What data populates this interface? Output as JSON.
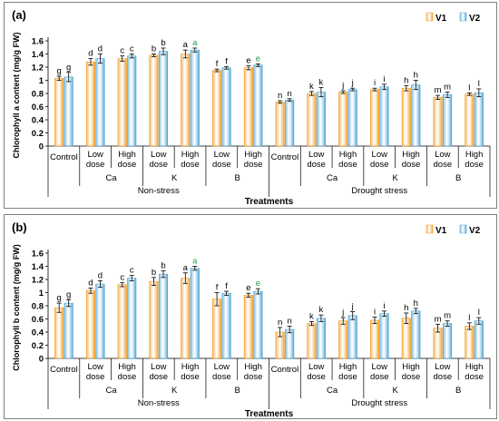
{
  "colors": {
    "V1": "#f39b1f",
    "V2": "#4aa3d6"
  },
  "chart_data": [
    {
      "type": "bar",
      "panel_label": "(a)",
      "ylabel": "Chlorophyll a content (mg/g FW)",
      "xlabel": "Treatments",
      "ylim": [
        0,
        1.6
      ],
      "yticks": [
        "0",
        "0.2",
        "0.4",
        "0.6",
        "0.8",
        "1",
        "1.2",
        "1.4",
        "1.6"
      ],
      "grid": false,
      "legend_position": "top-right",
      "categories": [
        "Control",
        "Low dose",
        "High dose",
        "Low dose",
        "High dose",
        "Low dose",
        "High dose",
        "Control",
        "Low dose",
        "High dose",
        "Low dose",
        "High dose",
        "Low dose",
        "High dose"
      ],
      "element_groups": [
        "Ca",
        "K",
        "B",
        "Ca",
        "K",
        "B"
      ],
      "stress_groups": [
        "Non-stress",
        "Drought stress"
      ],
      "series": [
        {
          "name": "V1",
          "values": [
            1.03,
            1.28,
            1.33,
            1.38,
            1.4,
            1.15,
            1.19,
            0.67,
            0.8,
            0.82,
            0.86,
            0.88,
            0.74,
            0.79
          ],
          "errors": [
            0.03,
            0.05,
            0.04,
            0.02,
            0.06,
            0.02,
            0.03,
            0.02,
            0.03,
            0.02,
            0.02,
            0.04,
            0.03,
            0.02
          ],
          "letters": [
            "g",
            "d",
            "c",
            "b",
            "a",
            "f",
            "e",
            "n",
            "k",
            "j",
            "i",
            "h",
            "m",
            "l"
          ]
        },
        {
          "name": "V2",
          "values": [
            1.05,
            1.33,
            1.37,
            1.44,
            1.46,
            1.19,
            1.23,
            0.7,
            0.82,
            0.86,
            0.9,
            0.93,
            0.78,
            0.81
          ],
          "errors": [
            0.07,
            0.07,
            0.03,
            0.05,
            0.03,
            0.02,
            0.02,
            0.02,
            0.07,
            0.02,
            0.04,
            0.07,
            0.04,
            0.06
          ],
          "letters": [
            "g",
            "d",
            "c",
            "b",
            "a",
            "f",
            "e",
            "n",
            "k",
            "j",
            "i",
            "h",
            "m",
            "l"
          ]
        }
      ]
    },
    {
      "type": "bar",
      "panel_label": "(b)",
      "ylabel": "Chlorophyll b content (mg/g FW)",
      "xlabel": "Treatments",
      "ylim": [
        0,
        1.6
      ],
      "yticks": [
        "0",
        "0.2",
        "0.4",
        "0.6",
        "0.8",
        "1",
        "1.2",
        "1.4",
        "1.6"
      ],
      "grid": false,
      "legend_position": "top-right",
      "categories": [
        "Control",
        "Low dose",
        "High dose",
        "Low dose",
        "High dose",
        "Low dose",
        "High dose",
        "Control",
        "Low dose",
        "High dose",
        "Low dose",
        "High dose",
        "Low dose",
        "High dose"
      ],
      "element_groups": [
        "Ca",
        "K",
        "B",
        "Ca",
        "K",
        "B"
      ],
      "stress_groups": [
        "Non-stress",
        "Drought stress"
      ],
      "series": [
        {
          "name": "V1",
          "values": [
            0.77,
            1.03,
            1.12,
            1.17,
            1.22,
            0.9,
            0.96,
            0.4,
            0.53,
            0.57,
            0.58,
            0.61,
            0.46,
            0.49
          ],
          "errors": [
            0.07,
            0.04,
            0.03,
            0.06,
            0.08,
            0.1,
            0.03,
            0.07,
            0.03,
            0.05,
            0.05,
            0.08,
            0.06,
            0.05
          ],
          "letters": [
            "g",
            "d",
            "c",
            "b",
            "a",
            "f",
            "e",
            "n",
            "k",
            "j",
            "i",
            "h",
            "m",
            "l"
          ]
        },
        {
          "name": "V2",
          "values": [
            0.84,
            1.13,
            1.22,
            1.28,
            1.37,
            0.99,
            1.02,
            0.44,
            0.61,
            0.65,
            0.68,
            0.72,
            0.53,
            0.57
          ],
          "errors": [
            0.05,
            0.05,
            0.04,
            0.05,
            0.03,
            0.03,
            0.04,
            0.05,
            0.05,
            0.06,
            0.04,
            0.04,
            0.04,
            0.05
          ],
          "letters": [
            "g",
            "d",
            "c",
            "b",
            "a",
            "f",
            "e",
            "n",
            "k",
            "j",
            "i",
            "h",
            "m",
            "l"
          ]
        }
      ]
    }
  ]
}
